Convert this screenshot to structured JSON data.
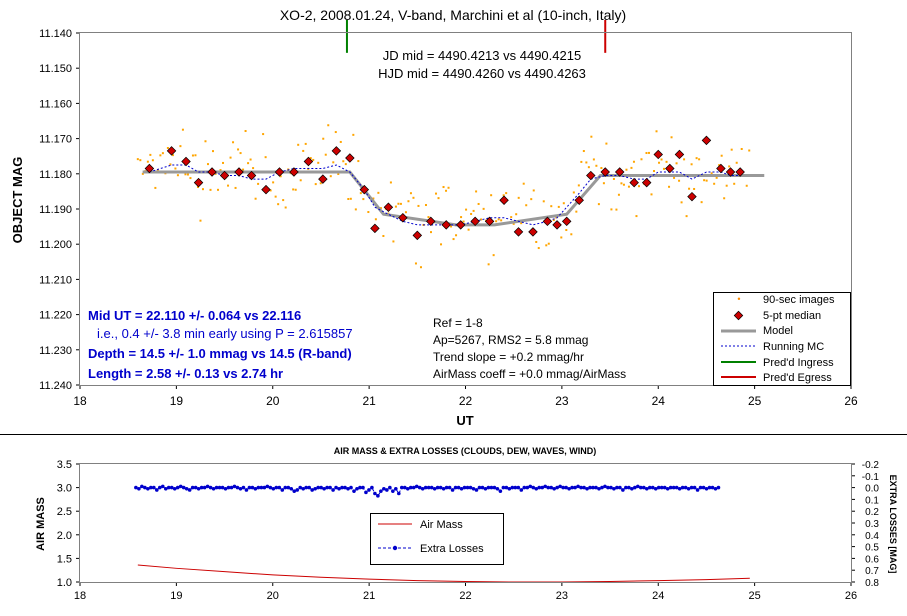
{
  "chart_data": [
    {
      "type": "scatter",
      "title": "XO-2, 2008.01.24, V-band, Marchini et al (10-inch, Italy)",
      "xlabel": "UT",
      "ylabel": "OBJECT MAG",
      "xlim": [
        18,
        26
      ],
      "ylim": [
        11.14,
        11.24
      ],
      "y_inverted": true,
      "xticks": [
        "18",
        "19",
        "20",
        "21",
        "22",
        "23",
        "24",
        "25",
        "26"
      ],
      "yticks": [
        "11.140",
        "11.150",
        "11.160",
        "11.170",
        "11.180",
        "11.190",
        "11.200",
        "11.210",
        "11.220",
        "11.230",
        "11.240"
      ],
      "annotations": {
        "jd": "JD mid = 4490.4213 vs 4490.4215",
        "hjd": "HJD mid = 4490.4260 vs 4490.4263",
        "mid_ut": "Mid UT = 22.110 +/- 0.064 vs 22.116",
        "early": "i.e., 0.4 +/- 3.8 min early using P = 2.615857",
        "depth": "Depth = 14.5 +/- 1.0 mmag vs 14.5 (R-band)",
        "length": "Length = 2.58 +/- 0.13 vs 2.74 hr",
        "ref": "Ref = 1-8",
        "ap": "Ap=5267, RMS2 = 5.8 mmag",
        "trend": "Trend slope = +0.2 mmag/hr",
        "airmass_coeff": "AirMass coeff = +0.0 mmag/AirMass"
      },
      "legend_position": "bottom-right",
      "legend": [
        "90-sec images",
        "5-pt median",
        "Model",
        "Running MC",
        "Pred'd Ingress",
        "Pred'd Egress"
      ],
      "series": [
        {
          "name": "Model",
          "color": "#999999",
          "x": [
            18.65,
            20.8,
            21.15,
            21.9,
            22.3,
            23.05,
            23.4,
            25.1
          ],
          "y": [
            11.1795,
            11.1795,
            11.1915,
            11.1945,
            11.1945,
            11.1915,
            11.1805,
            11.1805
          ]
        },
        {
          "name": "5-pt median",
          "color": "#cc0000",
          "x": [
            18.72,
            18.95,
            19.1,
            19.23,
            19.37,
            19.5,
            19.65,
            19.78,
            19.93,
            20.07,
            20.22,
            20.37,
            20.52,
            20.66,
            20.8,
            20.95,
            21.06,
            21.2,
            21.35,
            21.5,
            21.64,
            21.8,
            21.95,
            22.1,
            22.25,
            22.4,
            22.55,
            22.7,
            22.85,
            22.95,
            23.05,
            23.18,
            23.3,
            23.45,
            23.6,
            23.75,
            23.88,
            24.0,
            24.12,
            24.22,
            24.35,
            24.5,
            24.65,
            24.75,
            24.85
          ],
          "y": [
            11.1785,
            11.1735,
            11.1765,
            11.1825,
            11.1795,
            11.1805,
            11.1795,
            11.1805,
            11.1845,
            11.1795,
            11.1795,
            11.1765,
            11.1815,
            11.1735,
            11.1755,
            11.1845,
            11.1955,
            11.1895,
            11.1925,
            11.1975,
            11.1935,
            11.1945,
            11.1945,
            11.1935,
            11.1935,
            11.1875,
            11.1965,
            11.1965,
            11.1935,
            11.1945,
            11.1935,
            11.1875,
            11.1805,
            11.1795,
            11.1795,
            11.1825,
            11.1825,
            11.1745,
            11.1785,
            11.1745,
            11.1865,
            11.1705,
            11.1785,
            11.1795,
            11.1795
          ]
        },
        {
          "name": "Running MC",
          "color": "#0000cc",
          "x": [
            18.72,
            18.95,
            19.1,
            19.23,
            19.37,
            19.5,
            19.65,
            19.78,
            19.93,
            20.07,
            20.22,
            20.37,
            20.52,
            20.66,
            20.8,
            20.95,
            21.06,
            21.2,
            21.35,
            21.5,
            21.64,
            21.8,
            21.95,
            22.1,
            22.25,
            22.4,
            22.55,
            22.7,
            22.85,
            22.95,
            23.05,
            23.18,
            23.3,
            23.45,
            23.6,
            23.75,
            23.88,
            24.0,
            24.12,
            24.22,
            24.35,
            24.5,
            24.65,
            24.75,
            24.85
          ],
          "y": [
            11.1795,
            11.1775,
            11.1775,
            11.1795,
            11.1795,
            11.1805,
            11.1805,
            11.1815,
            11.1815,
            11.1795,
            11.1785,
            11.1785,
            11.1785,
            11.1775,
            11.1795,
            11.1845,
            11.1895,
            11.1915,
            11.1935,
            11.1945,
            11.1945,
            11.1945,
            11.1945,
            11.1935,
            11.1925,
            11.1925,
            11.1935,
            11.1945,
            11.1935,
            11.1925,
            11.1895,
            11.1855,
            11.1815,
            11.1805,
            11.1805,
            11.1815,
            11.1815,
            11.1795,
            11.1795,
            11.1795,
            11.1815,
            11.1795,
            11.1795,
            11.1805,
            11.1805
          ]
        },
        {
          "name": "Pred'd Ingress",
          "color": "#008000",
          "x": [
            20.77,
            20.77
          ],
          "y": [
            11.14,
            11.1445
          ]
        },
        {
          "name": "Pred'd Egress",
          "color": "#cc0000",
          "x": [
            23.45,
            23.45
          ],
          "y": [
            11.14,
            11.1445
          ]
        }
      ]
    },
    {
      "type": "scatter",
      "title": "AIR MASS & EXTRA LOSSES (CLOUDS, DEW, WAVES, WIND)",
      "xlabel": "",
      "ylabel": "AIR MASS",
      "y2label": "EXTRA LOSSES [MAG]",
      "xlim": [
        18,
        26
      ],
      "ylim": [
        1.0,
        3.5
      ],
      "y2lim": [
        -0.2,
        0.8
      ],
      "y2_inverted": true,
      "xticks": [
        "18",
        "19",
        "20",
        "21",
        "22",
        "23",
        "24",
        "25",
        "26"
      ],
      "yticks": [
        "1.0",
        "1.5",
        "2.0",
        "2.5",
        "3.0",
        "3.5"
      ],
      "y2ticks": [
        "-0.2",
        "-0.1",
        "0.0",
        "0.1",
        "0.2",
        "0.3",
        "0.4",
        "0.5",
        "0.6",
        "0.7",
        "0.8"
      ],
      "legend_position": "center",
      "legend": [
        "Air Mass",
        "Extra Losses"
      ],
      "series": [
        {
          "name": "Air Mass",
          "color": "#cc0000",
          "x": [
            18.6,
            19.0,
            19.5,
            20.0,
            20.5,
            21.0,
            21.5,
            22.0,
            22.5,
            23.0,
            23.5,
            24.0,
            24.5,
            24.95
          ],
          "y": [
            1.36,
            1.29,
            1.22,
            1.15,
            1.1,
            1.06,
            1.03,
            1.01,
            1.0,
            1.0,
            1.01,
            1.03,
            1.05,
            1.08
          ]
        },
        {
          "name": "Extra Losses",
          "color": "#0000cc",
          "x_start": 18.58,
          "x_step": 0.031,
          "y": [
            0.0,
            0.01,
            -0.01,
            0.0,
            0.01,
            0.0,
            0.0,
            0.02,
            0.0,
            -0.01,
            0.01,
            0.0,
            0.0,
            0.01,
            0.0,
            -0.01,
            0.0,
            0.01,
            0.02,
            0.0,
            0.0,
            0.01,
            0.0,
            0.0,
            -0.01,
            0.0,
            0.01,
            0.0,
            0.0,
            0.0,
            0.01,
            0.0,
            0.0,
            -0.01,
            0.0,
            0.01,
            0.0,
            0.02,
            0.0,
            0.0,
            0.01,
            0.0,
            0.0,
            0.0,
            -0.01,
            0.0,
            0.01,
            0.0,
            0.0,
            0.02,
            0.0,
            0.0,
            0.01,
            0.03,
            0.02,
            0.0,
            0.01,
            0.0,
            0.0,
            0.02,
            0.01,
            0.0,
            0.0,
            0.01,
            0.0,
            0.0,
            0.02,
            0.0,
            0.01,
            0.0,
            0.0,
            0.01,
            0.0,
            0.03,
            0.01,
            0.0,
            0.0,
            0.04,
            0.02,
            0.0,
            0.05,
            0.07,
            0.03,
            0.01,
            0.02,
            0.0,
            0.03,
            0.01,
            0.05,
            0.0,
            0.0,
            0.01,
            0.0,
            0.0,
            -0.01,
            0.0,
            0.01,
            0.0,
            0.0,
            0.0,
            0.01,
            0.0,
            0.0,
            0.01,
            0.0,
            0.0,
            0.02,
            0.0,
            0.0,
            0.01,
            0.0,
            0.0,
            0.0,
            0.01,
            0.02,
            0.0,
            0.0,
            0.01,
            0.0,
            0.0,
            0.0,
            0.01,
            0.03,
            0.0,
            0.0,
            0.01,
            0.0,
            0.0,
            0.0,
            0.02,
            0.0,
            0.0,
            -0.01,
            0.0,
            0.01,
            0.0,
            0.0,
            -0.01,
            0.0,
            0.0,
            0.01,
            0.0,
            -0.01,
            0.0,
            0.0,
            0.01,
            0.0,
            0.0,
            -0.01,
            0.0,
            0.0,
            0.01,
            0.0,
            0.0,
            0.0,
            0.01,
            0.0,
            -0.01,
            0.0,
            0.0,
            0.01,
            0.0,
            0.0,
            0.02,
            0.0,
            0.0,
            0.01,
            0.0,
            -0.01,
            0.0,
            0.0,
            0.01,
            0.0,
            0.0,
            0.01,
            0.0,
            0.0,
            0.0,
            0.01,
            0.0,
            0.0,
            0.0,
            0.01,
            0.0,
            0.0,
            0.01,
            0.0,
            0.0,
            0.02,
            0.0,
            0.0,
            0.01,
            0.0,
            0.0,
            0.01,
            0.0
          ]
        }
      ]
    }
  ]
}
